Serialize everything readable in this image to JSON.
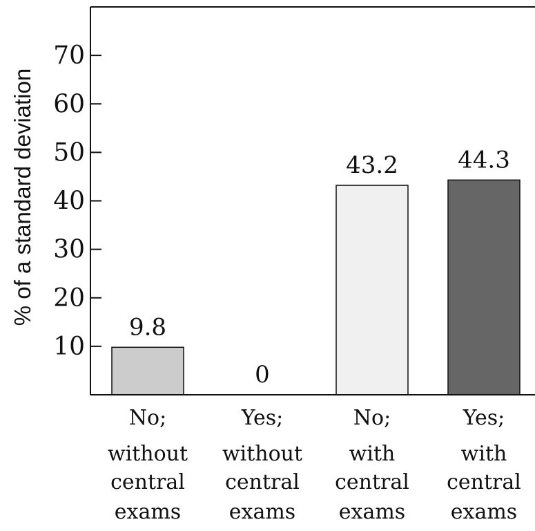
{
  "chart_data": {
    "type": "bar",
    "ylabel": "% of a standard deviation",
    "ylim": [
      0,
      80
    ],
    "yticks": [
      10,
      20,
      30,
      40,
      50,
      60,
      70
    ],
    "grid": false,
    "categories": [
      [
        "No;",
        "without",
        "central",
        "exams"
      ],
      [
        "Yes;",
        "without",
        "central",
        "exams"
      ],
      [
        "No;",
        "with",
        "central",
        "exams"
      ],
      [
        "Yes;",
        "with",
        "central",
        "exams"
      ]
    ],
    "values": [
      9.8,
      0,
      43.2,
      44.3
    ],
    "value_labels": [
      "9.8",
      "0",
      "43.2",
      "44.3"
    ],
    "bar_colors": [
      "#cccccc",
      "#ffffff",
      "#f0f0f0",
      "#666666"
    ]
  }
}
